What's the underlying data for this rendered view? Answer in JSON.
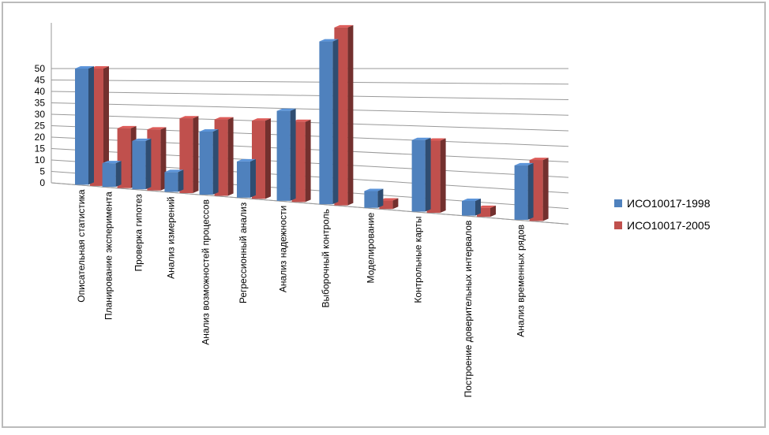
{
  "chart_data": {
    "type": "bar3d",
    "categories": [
      "Описательная статистика",
      "Планирование эксперимента",
      "Проверка гипотез",
      "Анализ измерений",
      "Анализ возможностей процессов",
      "Регрессионный анализ",
      "Анализ надежности",
      "Выборочный контроль",
      "Моделирование",
      "Контрольные карты",
      "Построение доверительных  интервалов",
      "Анализ временных рядов"
    ],
    "series": [
      {
        "name": "ИСО10017-1998",
        "color": "#4f81bd",
        "values": [
          50,
          10,
          20,
          8,
          25,
          14,
          34,
          60,
          6,
          25,
          5,
          18
        ]
      },
      {
        "name": "ИСО10017-2005",
        "color": "#c0504d",
        "values": [
          50,
          25,
          25,
          30,
          30,
          30,
          30,
          65,
          3,
          25,
          3,
          20
        ]
      }
    ],
    "ylim": [
      0,
      70
    ],
    "yticks": [
      0,
      5,
      10,
      15,
      20,
      25,
      30,
      35,
      40,
      45,
      50
    ],
    "grid": true,
    "legend": "right"
  }
}
